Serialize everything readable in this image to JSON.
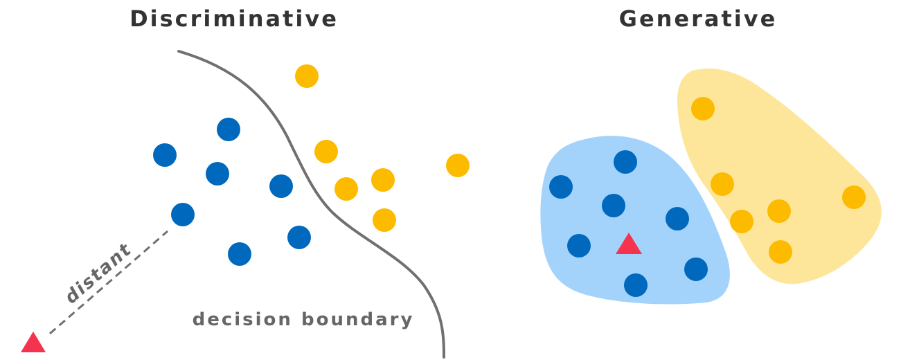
{
  "titles": {
    "discriminative": "Discriminative",
    "generative": "Generative"
  },
  "labels": {
    "decision_boundary": "decision boundary",
    "distant": "distant"
  },
  "colors": {
    "blue": "#0068bd",
    "yellow": "#fdbb00",
    "red": "#f5334f",
    "blue_region": "#a3d3fb",
    "yellow_region": "#fde69a",
    "boundary": "#707070"
  }
}
